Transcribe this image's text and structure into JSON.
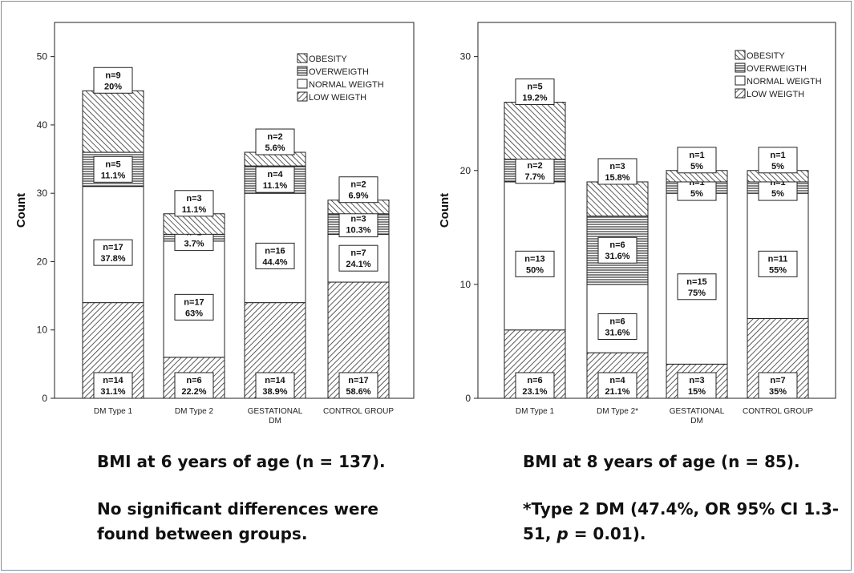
{
  "chart_data": [
    {
      "type": "stacked-bar",
      "ylabel": "Count",
      "ylim": [
        0,
        55
      ],
      "yticks": [
        0,
        10,
        20,
        30,
        40,
        50
      ],
      "categories": [
        "DM Type 1",
        "DM Type 2",
        "GESTATIONAL DM",
        "CONTROL GROUP"
      ],
      "legend": [
        "OBESITY",
        "OVERWEIGTH",
        "NORMAL WEIGTH",
        "LOW WEIGTH"
      ],
      "legend_position": "top-right",
      "series": [
        {
          "name": "LOW WEIGTH",
          "values": [
            14,
            6,
            14,
            17
          ],
          "labels": [
            [
              "n=14",
              "31.1%"
            ],
            [
              "n=6",
              "22.2%"
            ],
            [
              "n=14",
              "38.9%"
            ],
            [
              "n=17",
              "58.6%"
            ]
          ]
        },
        {
          "name": "NORMAL WEIGTH",
          "values": [
            17,
            17,
            16,
            7
          ],
          "labels": [
            [
              "n=17",
              "37.8%"
            ],
            [
              "n=17",
              "63%"
            ],
            [
              "n=16",
              "44.4%"
            ],
            [
              "n=7",
              "24.1%"
            ]
          ]
        },
        {
          "name": "OVERWEIGTH",
          "values": [
            5,
            1,
            4,
            3
          ],
          "labels": [
            [
              "n=5",
              "11.1%"
            ],
            [
              "n=1",
              "3.7%"
            ],
            [
              "n=4",
              "11.1%"
            ],
            [
              "n=3",
              "10.3%"
            ]
          ]
        },
        {
          "name": "OBESITY",
          "values": [
            9,
            3,
            2,
            2
          ],
          "labels": [
            [
              "n=9",
              "20%"
            ],
            [
              "n=3",
              "11.1%"
            ],
            [
              "n=2",
              "5.6%"
            ],
            [
              "n=2",
              "6.9%"
            ]
          ]
        }
      ]
    },
    {
      "type": "stacked-bar",
      "ylabel": "Count",
      "ylim": [
        0,
        33
      ],
      "yticks": [
        0,
        10,
        20,
        30
      ],
      "categories": [
        "DM Type 1",
        "DM Type 2*",
        "GESTATIONAL DM",
        "CONTROL GROUP"
      ],
      "legend": [
        "OBESITY",
        "OVERWEIGTH",
        "NORMAL WEIGTH",
        "LOW WEIGTH"
      ],
      "legend_position": "top-right",
      "series": [
        {
          "name": "LOW WEIGTH",
          "values": [
            6,
            4,
            3,
            7
          ],
          "labels": [
            [
              "n=6",
              "23.1%"
            ],
            [
              "n=4",
              "21.1%"
            ],
            [
              "n=3",
              "15%"
            ],
            [
              "n=7",
              "35%"
            ]
          ]
        },
        {
          "name": "NORMAL WEIGTH",
          "values": [
            13,
            6,
            15,
            11
          ],
          "labels": [
            [
              "n=13",
              "50%"
            ],
            [
              "n=6",
              "31.6%"
            ],
            [
              "n=15",
              "75%"
            ],
            [
              "n=11",
              "55%"
            ]
          ]
        },
        {
          "name": "OVERWEIGTH",
          "values": [
            2,
            6,
            1,
            1
          ],
          "labels": [
            [
              "n=2",
              "7.7%"
            ],
            [
              "n=6",
              "31.6%"
            ],
            [
              "n=1",
              "5%"
            ],
            [
              "n=1",
              "5%"
            ]
          ]
        },
        {
          "name": "OBESITY",
          "values": [
            5,
            3,
            1,
            1
          ],
          "labels": [
            [
              "n=5",
              "19.2%"
            ],
            [
              "n=3",
              "15.8%"
            ],
            [
              "n=1",
              "5%"
            ],
            [
              "n=1",
              "5%"
            ]
          ]
        }
      ]
    }
  ],
  "captions": {
    "left_title": "BMI at 6 years of age (n = 137).",
    "left_note": "No significant differences were found between groups.",
    "right_title": "BMI at 8 years of age (n = 85).",
    "right_note_a": "*Type 2 DM (47.4%, OR 95% CI 1.3-51, ",
    "right_note_p": "p",
    "right_note_b": " = 0.01)."
  }
}
